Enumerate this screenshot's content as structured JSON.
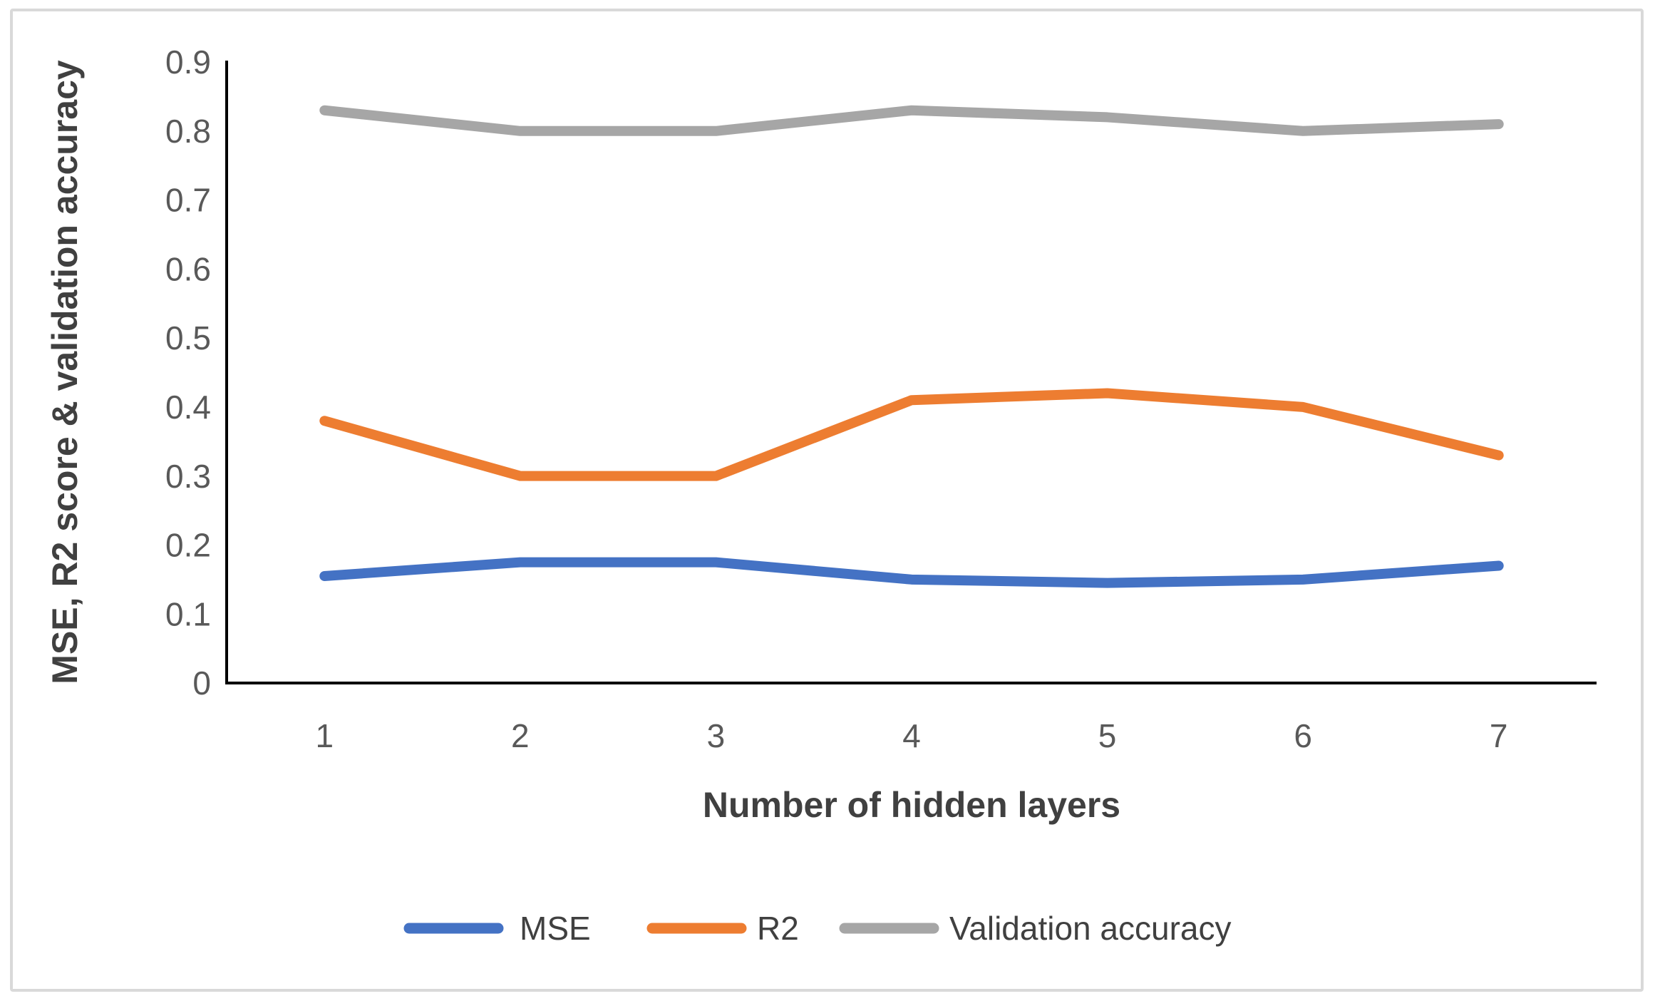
{
  "frame": {
    "border_color": "#d9d9d9",
    "background_color": "#ffffff"
  },
  "chart_data": {
    "type": "line",
    "title": "",
    "xlabel": "Number of hidden layers",
    "ylabel": "MSE, R2 score & validation accuracy",
    "categories": [
      "1",
      "2",
      "3",
      "4",
      "5",
      "6",
      "7"
    ],
    "y_ticks": [
      "0",
      "0.1",
      "0.2",
      "0.3",
      "0.4",
      "0.5",
      "0.6",
      "0.7",
      "0.8",
      "0.9"
    ],
    "ylim": [
      0,
      0.9
    ],
    "grid": false,
    "legend_position": "bottom",
    "axis_color": "#000000",
    "tick_label_color": "#595959",
    "title_color": "#404040",
    "legend_text_color": "#404040",
    "series": [
      {
        "name": "MSE",
        "color": "#4472C4",
        "values": [
          0.155,
          0.175,
          0.175,
          0.15,
          0.145,
          0.15,
          0.17
        ]
      },
      {
        "name": "R2",
        "color": "#ED7D31",
        "values": [
          0.38,
          0.3,
          0.3,
          0.41,
          0.42,
          0.4,
          0.33
        ]
      },
      {
        "name": "Validation accuracy",
        "color": "#A6A6A6",
        "values": [
          0.83,
          0.8,
          0.8,
          0.83,
          0.82,
          0.8,
          0.81
        ]
      }
    ]
  }
}
